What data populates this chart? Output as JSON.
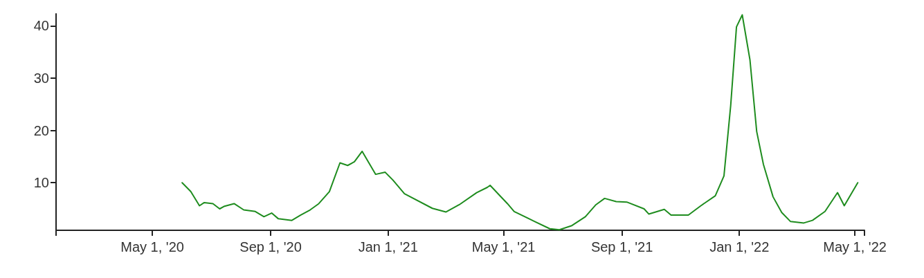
{
  "chart_data": {
    "type": "line",
    "xlim": [
      "2020-01-22",
      "2022-05-11"
    ],
    "ylim": [
      0.9,
      42.3
    ],
    "xticks": [
      {
        "value": "2020-01-22",
        "label": null
      },
      {
        "value": "2020-05-01",
        "label": "May 1, '20"
      },
      {
        "value": "2020-09-01",
        "label": "Sep 1, '20"
      },
      {
        "value": "2021-01-01",
        "label": "Jan 1, '21"
      },
      {
        "value": "2021-05-01",
        "label": "May 1, '21"
      },
      {
        "value": "2021-09-01",
        "label": "Sep 1, '21"
      },
      {
        "value": "2022-01-01",
        "label": "Jan 1, '22"
      },
      {
        "value": "2022-05-01",
        "label": "May 1, '22"
      },
      {
        "value": "2022-05-11",
        "label": null
      }
    ],
    "yticks": [
      10,
      20,
      30,
      40
    ],
    "grid": false,
    "marker": "none",
    "line_style": "solid",
    "series": [
      {
        "color": "#1e8c1e",
        "x": [
          "2020-06-01",
          "2020-06-10",
          "2020-06-19",
          "2020-06-24",
          "2020-07-03",
          "2020-07-10",
          "2020-07-15",
          "2020-07-25",
          "2020-08-04",
          "2020-08-16",
          "2020-08-25",
          "2020-09-02",
          "2020-09-09",
          "2020-09-23",
          "2020-10-02",
          "2020-10-12",
          "2020-10-21",
          "2020-11-01",
          "2020-11-12",
          "2020-11-20",
          "2020-11-27",
          "2020-12-05",
          "2020-12-19",
          "2020-12-29",
          "2021-01-06",
          "2021-01-18",
          "2021-02-16",
          "2021-03-02",
          "2021-03-16",
          "2021-04-03",
          "2021-04-14",
          "2021-04-17",
          "2021-05-05",
          "2021-05-12",
          "2021-06-02",
          "2021-06-18",
          "2021-06-28",
          "2021-07-11",
          "2021-07-25",
          "2021-08-05",
          "2021-08-14",
          "2021-08-26",
          "2021-09-06",
          "2021-09-24",
          "2021-09-29",
          "2021-10-15",
          "2021-10-22",
          "2021-11-09",
          "2021-11-22",
          "2021-12-07",
          "2021-12-16",
          "2021-12-23",
          "2021-12-29",
          "2022-01-04",
          "2022-01-12",
          "2022-01-19",
          "2022-01-26",
          "2022-02-05",
          "2022-02-14",
          "2022-02-23",
          "2022-03-09",
          "2022-03-18",
          "2022-03-31",
          "2022-04-13",
          "2022-04-20",
          "2022-05-04"
        ],
        "values": [
          10.0,
          8.3,
          5.6,
          6.2,
          6.0,
          5.0,
          5.5,
          6.0,
          4.8,
          4.5,
          3.5,
          4.2,
          3.1,
          2.8,
          3.8,
          4.8,
          6.0,
          8.3,
          13.8,
          13.3,
          14.0,
          16.0,
          11.6,
          12.0,
          10.5,
          7.9,
          5.1,
          4.4,
          5.8,
          8.1,
          9.1,
          9.5,
          6.0,
          4.5,
          2.6,
          1.2,
          1.0,
          1.8,
          3.5,
          5.8,
          7.0,
          6.4,
          6.3,
          5.0,
          4.0,
          4.9,
          3.8,
          3.8,
          5.6,
          7.5,
          11.3,
          24.8,
          39.8,
          42.1,
          33.5,
          19.8,
          13.5,
          7.3,
          4.3,
          2.6,
          2.3,
          2.8,
          4.5,
          8.1,
          5.6,
          10.0
        ]
      }
    ]
  }
}
